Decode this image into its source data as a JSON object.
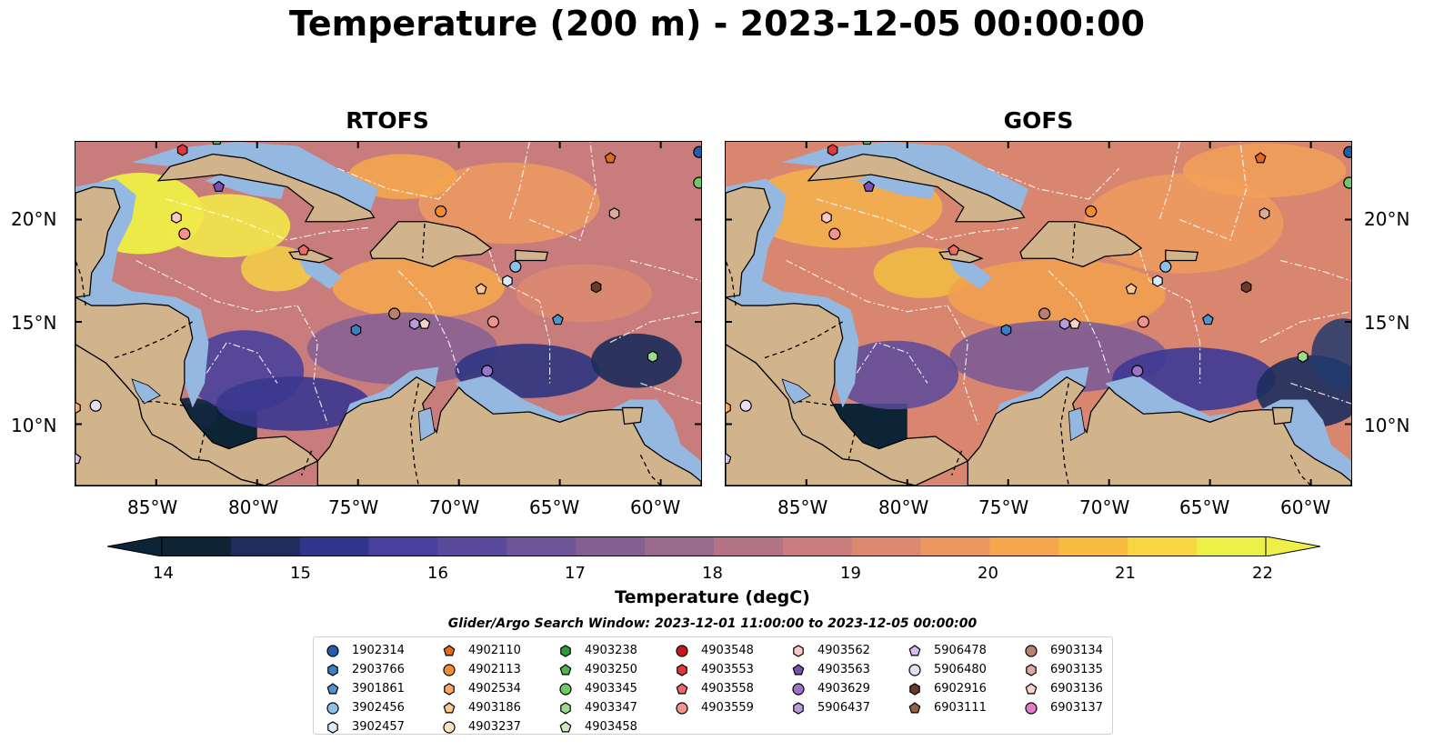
{
  "figure": {
    "title": "Temperature (200 m) - 2023-12-05 00:00:00",
    "panels": [
      {
        "title": "RTOFS",
        "y_labels_side": "left"
      },
      {
        "title": "GOFS",
        "y_labels_side": "right"
      }
    ],
    "lon_ticks": [
      "85°W",
      "80°W",
      "75°W",
      "70°W",
      "65°W",
      "60°W"
    ],
    "lat_ticks": [
      "20°N",
      "15°N",
      "10°N"
    ],
    "colors": {
      "land": "#d2b48c",
      "shelf": "#94b8e0",
      "coast": "#000000",
      "eez": "#ffffff"
    }
  },
  "colorbar": {
    "label": "Temperature (degC)",
    "ticks": [
      "14",
      "15",
      "16",
      "17",
      "18",
      "19",
      "20",
      "21",
      "22"
    ],
    "min": 14,
    "max": 22,
    "step": 0.5,
    "extend": "both",
    "colormap": "thermal"
  },
  "legend": {
    "title": "Glider/Argo Search Window: 2023-12-01 11:00:00 to 2023-12-05 00:00:00",
    "columns": [
      [
        {
          "id": "1902314",
          "marker": "circle",
          "color": "#1f5ea8"
        },
        {
          "id": "2903766",
          "marker": "hexagon",
          "color": "#3a7fc0"
        },
        {
          "id": "3901861",
          "marker": "pentagon",
          "color": "#4f94d1"
        },
        {
          "id": "3902456",
          "marker": "circle",
          "color": "#8cc0e8"
        },
        {
          "id": "3902457",
          "marker": "hexagon",
          "color": "#d8ebf8"
        }
      ],
      [
        {
          "id": "4902110",
          "marker": "pentagon",
          "color": "#e8681a"
        },
        {
          "id": "4902113",
          "marker": "circle",
          "color": "#f48a32"
        },
        {
          "id": "4902534",
          "marker": "hexagon",
          "color": "#f9a765"
        },
        {
          "id": "4903186",
          "marker": "pentagon",
          "color": "#fbc68f"
        },
        {
          "id": "4903237",
          "marker": "circle",
          "color": "#fde2c4"
        }
      ],
      [
        {
          "id": "4903238",
          "marker": "hexagon",
          "color": "#2e9a3a"
        },
        {
          "id": "4903250",
          "marker": "pentagon",
          "color": "#4cb54b"
        },
        {
          "id": "4903345",
          "marker": "circle",
          "color": "#6fc865"
        },
        {
          "id": "4903347",
          "marker": "hexagon",
          "color": "#9ddb8c"
        },
        {
          "id": "4903458",
          "marker": "pentagon",
          "color": "#cbeec0"
        }
      ],
      [
        {
          "id": "4903548",
          "marker": "circle",
          "color": "#c7161c"
        },
        {
          "id": "4903553",
          "marker": "hexagon",
          "color": "#e0373a"
        },
        {
          "id": "4903558",
          "marker": "pentagon",
          "color": "#ee6a66"
        },
        {
          "id": "4903559",
          "marker": "circle",
          "color": "#f4938e"
        }
      ],
      [
        {
          "id": "4903562",
          "marker": "hexagon",
          "color": "#fac9c4"
        },
        {
          "id": "4903563",
          "marker": "pentagon",
          "color": "#7a4fb0"
        },
        {
          "id": "4903629",
          "marker": "circle",
          "color": "#9a74c8"
        },
        {
          "id": "5906437",
          "marker": "hexagon",
          "color": "#b89cdc"
        }
      ],
      [
        {
          "id": "5906478",
          "marker": "pentagon",
          "color": "#d2bfec"
        },
        {
          "id": "5906480",
          "marker": "circle",
          "color": "#e9ddf6"
        },
        {
          "id": "6902916",
          "marker": "hexagon",
          "color": "#6b3a2a"
        },
        {
          "id": "6903111",
          "marker": "pentagon",
          "color": "#95604b"
        }
      ],
      [
        {
          "id": "6903134",
          "marker": "circle",
          "color": "#b88070"
        },
        {
          "id": "6903135",
          "marker": "hexagon",
          "color": "#dcaa9a"
        },
        {
          "id": "6903136",
          "marker": "pentagon",
          "color": "#f4d2c6"
        },
        {
          "id": "6903137",
          "marker": "circle",
          "color": "#e27cc8"
        }
      ]
    ]
  },
  "floats_on_map": [
    {
      "id": "4903553",
      "lon": -83.7,
      "lat": 23.4
    },
    {
      "id": "4903250",
      "lon": -82.0,
      "lat": 23.9
    },
    {
      "id": "4903563",
      "lon": -81.9,
      "lat": 21.6
    },
    {
      "id": "4903562",
      "lon": -84.0,
      "lat": 20.1
    },
    {
      "id": "4903559",
      "lon": -83.6,
      "lat": 19.3
    },
    {
      "id": "4903558",
      "lon": -77.7,
      "lat": 18.5
    },
    {
      "id": "4902113",
      "lon": -70.9,
      "lat": 20.4
    },
    {
      "id": "4902110",
      "lon": -62.5,
      "lat": 23.0
    },
    {
      "id": "6903135",
      "lon": -62.3,
      "lat": 20.3
    },
    {
      "id": "1902314",
      "lon": -58.1,
      "lat": 23.3
    },
    {
      "id": "4903345",
      "lon": -58.1,
      "lat": 21.8
    },
    {
      "id": "3902456",
      "lon": -67.2,
      "lat": 17.7
    },
    {
      "id": "3902457",
      "lon": -67.6,
      "lat": 17.0
    },
    {
      "id": "4903186",
      "lon": -68.9,
      "lat": 16.6
    },
    {
      "id": "6902916",
      "lon": -63.2,
      "lat": 16.7
    },
    {
      "id": "6903134",
      "lon": -73.2,
      "lat": 15.4
    },
    {
      "id": "5906437",
      "lon": -72.2,
      "lat": 14.9
    },
    {
      "id": "6903136",
      "lon": -71.7,
      "lat": 14.9
    },
    {
      "id": "4903559",
      "lon": -68.3,
      "lat": 15.0
    },
    {
      "id": "3901861",
      "lon": -65.1,
      "lat": 15.1
    },
    {
      "id": "2903766",
      "lon": -75.1,
      "lat": 14.6
    },
    {
      "id": "4903629",
      "lon": -68.6,
      "lat": 12.6
    },
    {
      "id": "4903347",
      "lon": -60.4,
      "lat": 13.3
    },
    {
      "id": "5906480",
      "lon": -88.0,
      "lat": 10.9
    },
    {
      "id": "4902534",
      "lon": -89.0,
      "lat": 10.8
    },
    {
      "id": "5906478",
      "lon": -89.0,
      "lat": 8.3
    }
  ]
}
